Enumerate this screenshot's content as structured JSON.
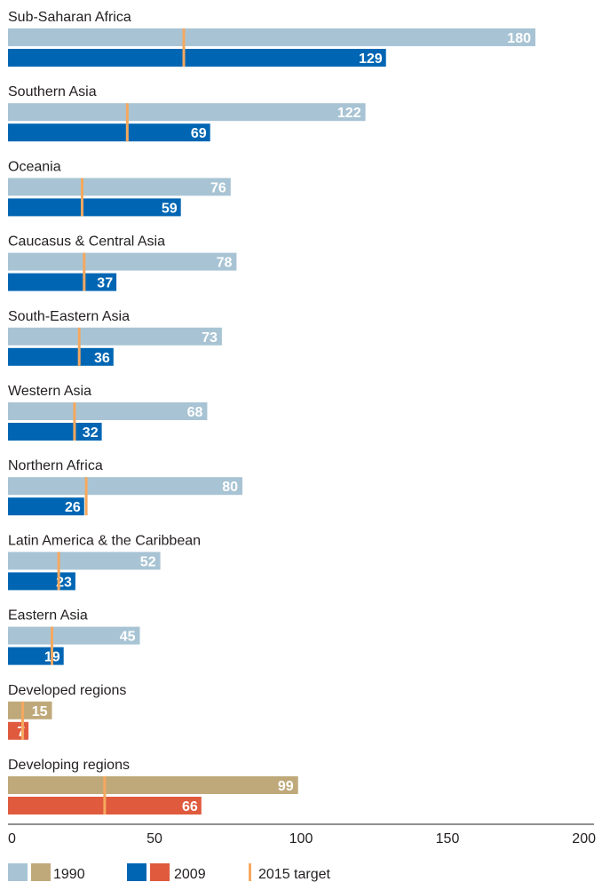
{
  "chart_data": {
    "type": "bar",
    "orientation": "horizontal",
    "title": "",
    "xlabel": "",
    "ylabel": "",
    "xlim": [
      0,
      200
    ],
    "x_ticks": [
      0,
      50,
      100,
      150,
      200
    ],
    "grid": false,
    "legend_position": "bottom-left",
    "categories": [
      "Sub-Saharan Africa",
      "Southern Asia",
      "Oceania",
      "Caucasus & Central Asia",
      "South-Eastern Asia",
      "Western Asia",
      "Northern Africa",
      "Latin America & the Caribbean",
      "Eastern Asia",
      "Developed regions",
      "Developing regions"
    ],
    "series": [
      {
        "name": "1990",
        "values": [
          180,
          122,
          76,
          78,
          73,
          68,
          80,
          52,
          45,
          15,
          99
        ]
      },
      {
        "name": "2009",
        "values": [
          129,
          69,
          59,
          37,
          36,
          32,
          26,
          23,
          19,
          7,
          66
        ]
      },
      {
        "name": "2015 target",
        "values": [
          60,
          40.7,
          25.3,
          26,
          24.3,
          22.7,
          26.7,
          17.3,
          15,
          5,
          33
        ]
      }
    ],
    "aggregate_categories": [
      "Developed regions",
      "Developing regions"
    ],
    "colors": {
      "1990_regions": "#a8c4d4",
      "2009_regions": "#0066b3",
      "1990_aggregates": "#bfa97a",
      "2009_aggregates": "#e05a3e",
      "target": "#f5a85f",
      "axis": "#231f20"
    },
    "legend": {
      "items": [
        "1990",
        "2009",
        "2015 target"
      ]
    }
  }
}
